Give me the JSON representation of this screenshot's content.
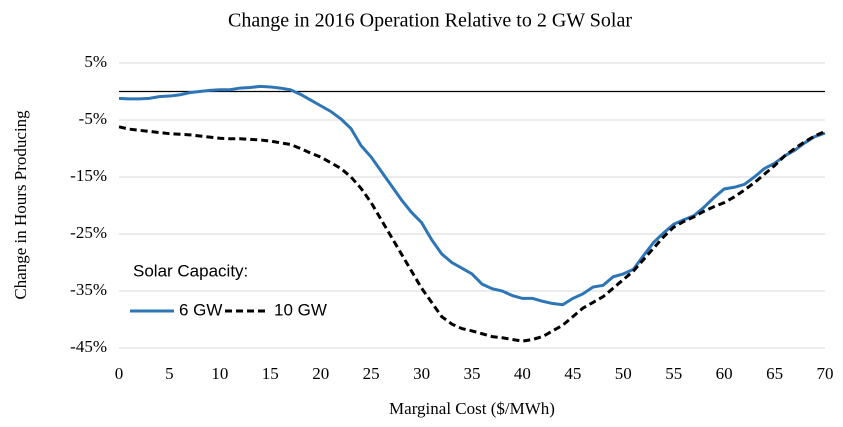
{
  "chart_data": {
    "type": "line",
    "title": "Change in 2016 Operation Relative to 2 GW Solar",
    "x_label": "Marginal Cost ($/MWh)",
    "y_label": "Change in Hours Producing",
    "legend_title": "Solar Capacity:",
    "x": [
      0,
      1,
      2,
      3,
      4,
      5,
      6,
      7,
      8,
      9,
      10,
      11,
      12,
      13,
      14,
      15,
      16,
      17,
      18,
      19,
      20,
      21,
      22,
      23,
      24,
      25,
      26,
      27,
      28,
      29,
      30,
      31,
      32,
      33,
      34,
      35,
      36,
      37,
      38,
      39,
      40,
      41,
      42,
      43,
      44,
      45,
      46,
      47,
      48,
      49,
      50,
      51,
      52,
      53,
      54,
      55,
      56,
      57,
      58,
      59,
      60,
      61,
      62,
      63,
      64,
      65,
      66,
      67,
      68,
      69,
      70
    ],
    "series": [
      {
        "name": "6 GW",
        "color": "#2e75b6",
        "dash": false,
        "values": [
          -1.2,
          -1.3,
          -1.3,
          -1.2,
          -0.9,
          -0.8,
          -0.6,
          -0.2,
          0,
          0.2,
          0.3,
          0.3,
          0.6,
          0.7,
          0.9,
          0.8,
          0.6,
          0.3,
          -0.5,
          -1.5,
          -2.5,
          -3.5,
          -4.8,
          -6.5,
          -9.5,
          -11.5,
          -14,
          -16.5,
          -19,
          -21.2,
          -23,
          -26,
          -28.5,
          -30,
          -31,
          -32,
          -33.8,
          -34.6,
          -35,
          -35.8,
          -36.3,
          -36.3,
          -36.8,
          -37.2,
          -37.4,
          -36.3,
          -35.5,
          -34.3,
          -34,
          -32.5,
          -32,
          -31.2,
          -28.8,
          -26.5,
          -24.8,
          -23.3,
          -22.5,
          -21.8,
          -20.3,
          -18.6,
          -17.1,
          -16.8,
          -16.3,
          -15,
          -13.5,
          -12.6,
          -11.3,
          -10.3,
          -9,
          -7.9,
          -7.3
        ]
      },
      {
        "name": "10 GW",
        "color": "#000000",
        "dash": true,
        "values": [
          -6.2,
          -6.6,
          -6.8,
          -7,
          -7.2,
          -7.4,
          -7.5,
          -7.6,
          -7.8,
          -8,
          -8.2,
          -8.3,
          -8.3,
          -8.4,
          -8.5,
          -8.7,
          -9,
          -9.3,
          -10,
          -10.8,
          -11.5,
          -12.5,
          -13.5,
          -15,
          -17,
          -19.5,
          -22.5,
          -25.5,
          -28.5,
          -31.5,
          -34.5,
          -37,
          -39.5,
          -40.8,
          -41.6,
          -42,
          -42.5,
          -43,
          -43.2,
          -43.5,
          -43.8,
          -43.5,
          -43,
          -42,
          -41,
          -39.5,
          -38,
          -37,
          -36,
          -34.5,
          -33,
          -31.5,
          -29.5,
          -27.5,
          -25.5,
          -23.8,
          -22.8,
          -22,
          -21,
          -20.2,
          -19.5,
          -18.5,
          -17.3,
          -16,
          -14.5,
          -13,
          -11.3,
          -10,
          -8.8,
          -7.8,
          -7
        ]
      }
    ],
    "xlim": [
      0,
      70
    ],
    "xticks": [
      0,
      5,
      10,
      15,
      20,
      25,
      30,
      35,
      40,
      45,
      50,
      55,
      60,
      65,
      70
    ],
    "ylim": [
      -45,
      5
    ],
    "yticks": [
      {
        "value": -45,
        "label": "-45%"
      },
      {
        "value": -35,
        "label": "-35%"
      },
      {
        "value": -25,
        "label": "-25%"
      },
      {
        "value": -15,
        "label": "-15%"
      },
      {
        "value": -5,
        "label": "-5%"
      },
      {
        "value": 5,
        "label": "5%"
      }
    ],
    "grid": true
  }
}
